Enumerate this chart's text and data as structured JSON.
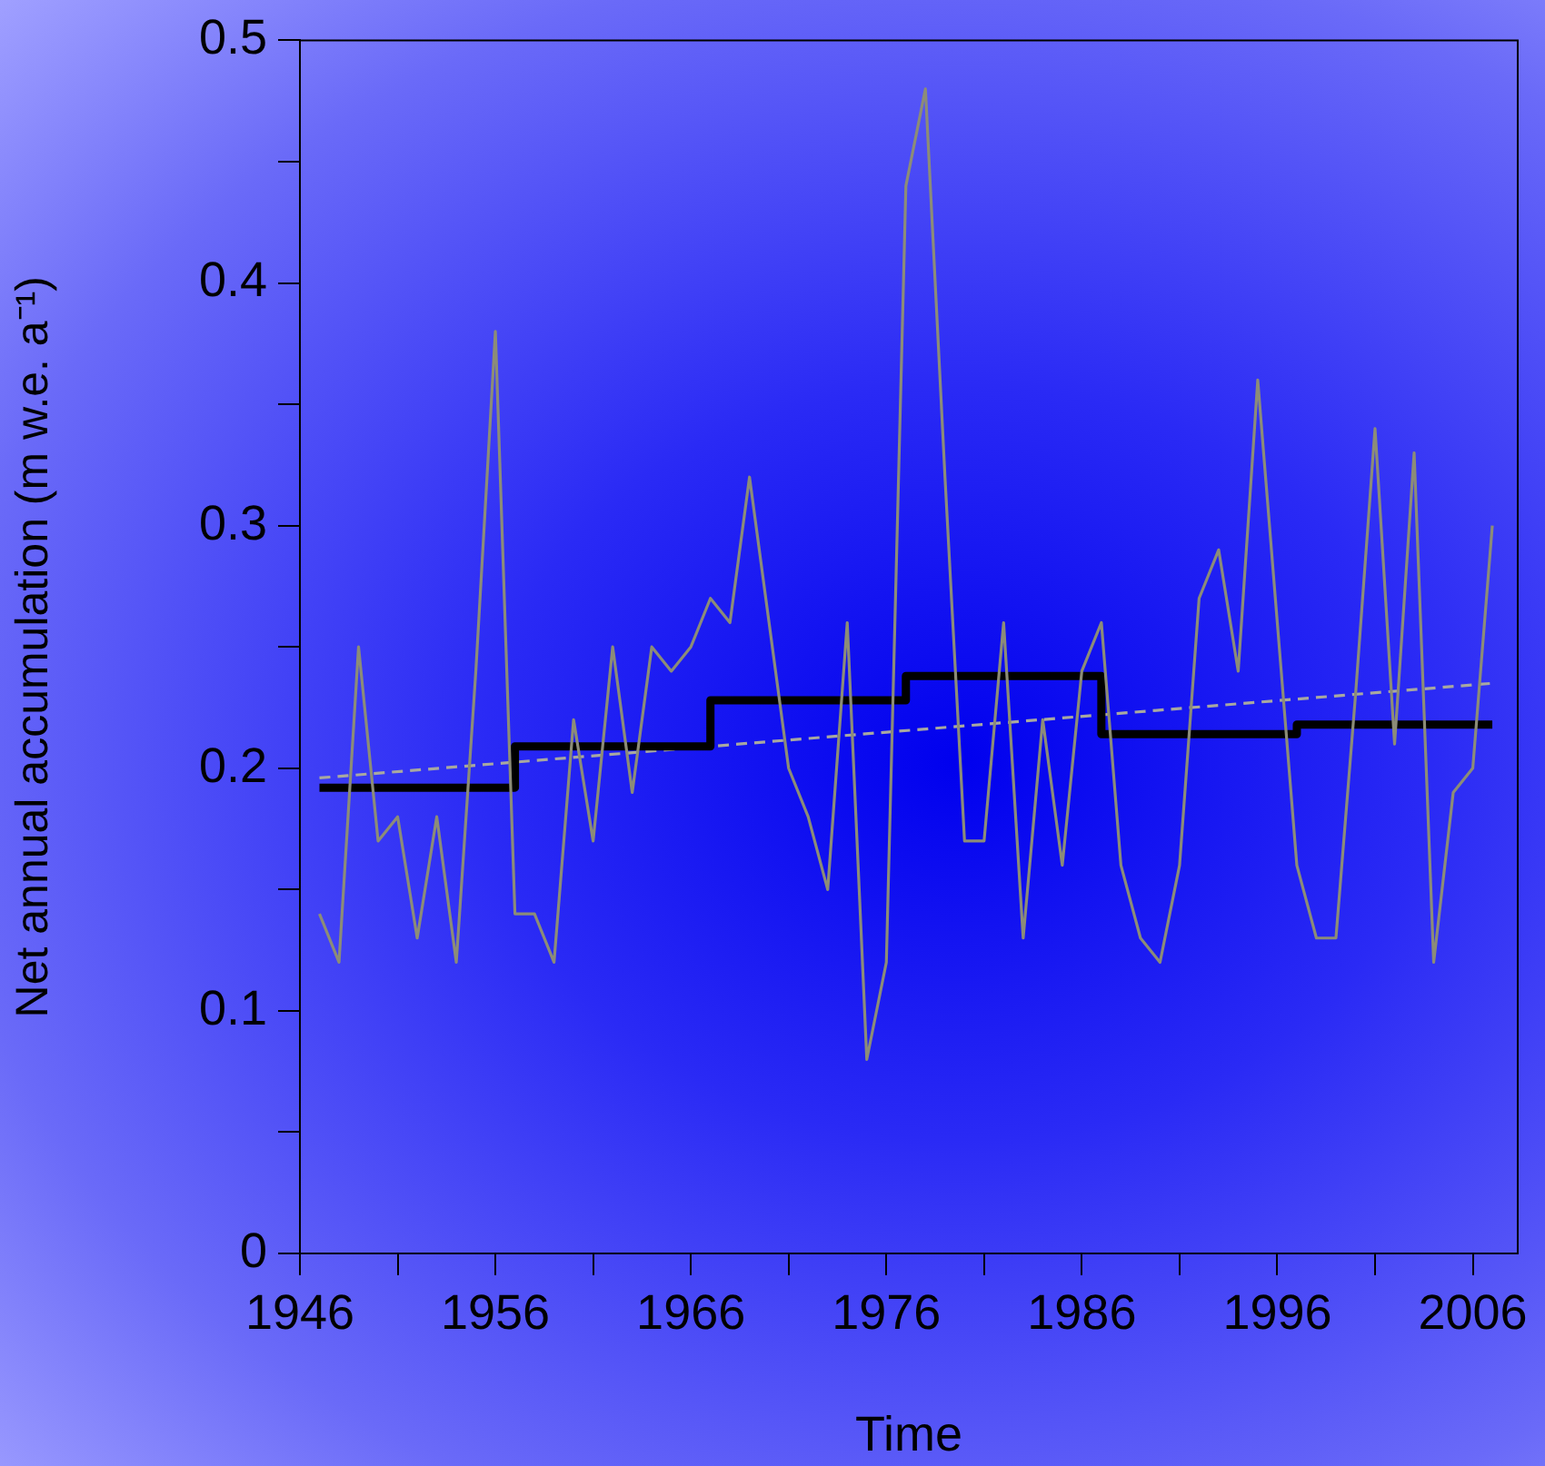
{
  "chart_data": {
    "type": "line",
    "xlabel": "Time",
    "ylabel": "Net annual accumulation (m w.e. a⁻¹)",
    "xlim": [
      1946,
      2008.3
    ],
    "ylim": [
      0,
      0.5
    ],
    "xticks": [
      1946,
      {
        "value": 1951,
        "label": null
      },
      1956,
      {
        "value": 1961,
        "label": null
      },
      1966,
      {
        "value": 1971,
        "label": null
      },
      1976,
      {
        "value": 1981,
        "label": null
      },
      1986,
      {
        "value": 1991,
        "label": null
      },
      1996,
      {
        "value": 2001,
        "label": null
      },
      2006
    ],
    "yticks": [
      0,
      {
        "value": 0.05,
        "label": null
      },
      0.1,
      {
        "value": 0.15,
        "label": null
      },
      0.2,
      {
        "value": 0.25,
        "label": null
      },
      0.3,
      {
        "value": 0.35,
        "label": null
      },
      0.4,
      {
        "value": 0.45,
        "label": null
      },
      0.5
    ],
    "grid": false,
    "legend": false,
    "marker": "none",
    "series": [
      {
        "type": "line",
        "color": "#8c8c78",
        "x": [
          1947,
          1948,
          1949,
          1950,
          1951,
          1952,
          1953,
          1954,
          1955,
          1956,
          1957,
          1958,
          1959,
          1960,
          1961,
          1962,
          1963,
          1964,
          1965,
          1966,
          1967,
          1968,
          1969,
          1970,
          1971,
          1972,
          1973,
          1974,
          1975,
          1976,
          1977,
          1978,
          1979,
          1980,
          1981,
          1982,
          1983,
          1984,
          1985,
          1986,
          1987,
          1988,
          1989,
          1990,
          1991,
          1992,
          1993,
          1994,
          1995,
          1996,
          1997,
          1998,
          1999,
          2000,
          2001,
          2002,
          2003,
          2004,
          2005,
          2006,
          2007
        ],
        "values": [
          0.14,
          0.12,
          0.25,
          0.17,
          0.18,
          0.13,
          0.18,
          0.12,
          0.24,
          0.38,
          0.14,
          0.14,
          0.12,
          0.22,
          0.17,
          0.25,
          0.19,
          0.25,
          0.24,
          0.25,
          0.27,
          0.26,
          0.32,
          0.26,
          0.2,
          0.18,
          0.15,
          0.26,
          0.08,
          0.12,
          0.44,
          0.48,
          0.32,
          0.17,
          0.17,
          0.26,
          0.13,
          0.22,
          0.16,
          0.24,
          0.26,
          0.16,
          0.13,
          0.12,
          0.16,
          0.27,
          0.29,
          0.24,
          0.36,
          0.26,
          0.16,
          0.13,
          0.13,
          0.23,
          0.34,
          0.21,
          0.33,
          0.12,
          0.19,
          0.2,
          0.3
        ]
      },
      {
        "type": "step",
        "color": "#000000",
        "x": [
          1947,
          1957,
          1967,
          1977,
          1987,
          1997,
          2007
        ],
        "values": [
          0.192,
          0.209,
          0.228,
          0.238,
          0.214,
          0.218,
          0.218
        ]
      },
      {
        "type": "line",
        "color": "#a8a8a0",
        "line_style": "dashed",
        "x": [
          1947,
          2007
        ],
        "values": [
          0.196,
          0.235
        ]
      }
    ]
  }
}
